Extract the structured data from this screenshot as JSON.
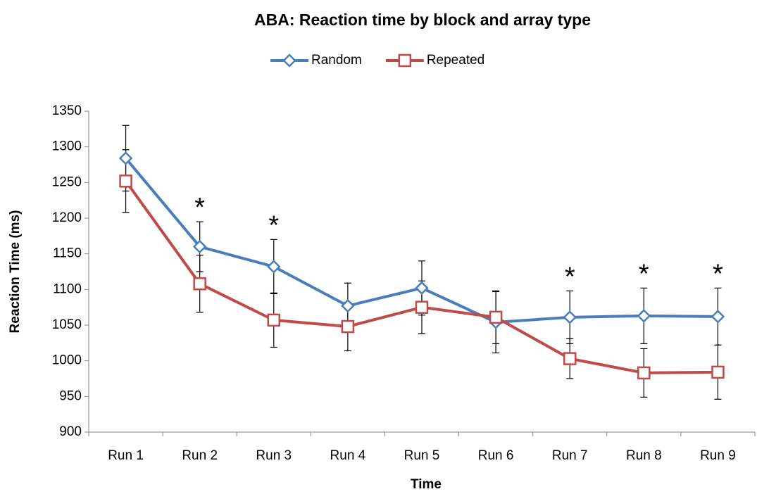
{
  "chart_data": {
    "type": "line",
    "title": "ABA: Reaction time by block and array type",
    "x_label": "Time",
    "y_label": "Reaction Time (ms)",
    "categories": [
      "Run 1",
      "Run 2",
      "Run 3",
      "Run 4",
      "Run 5",
      "Run 6",
      "Run 7",
      "Run 8",
      "Run 9"
    ],
    "series": [
      {
        "name": "Random",
        "color": "#4a7ebb",
        "marker": "diamond",
        "values": [
          1284,
          1160,
          1132,
          1077,
          1102,
          1054,
          1061,
          1063,
          1062
        ],
        "errors": [
          46,
          35,
          38,
          32,
          38,
          43,
          37,
          39,
          40
        ]
      },
      {
        "name": "Repeated",
        "color": "#be4b48",
        "marker": "square",
        "values": [
          1252,
          1108,
          1057,
          1048,
          1075,
          1061,
          1003,
          983,
          984
        ],
        "errors": [
          44,
          40,
          38,
          34,
          37,
          37,
          28,
          34,
          38
        ]
      }
    ],
    "annotations": [
      {
        "text": "*",
        "x": "Run 2"
      },
      {
        "text": "*",
        "x": "Run 3"
      },
      {
        "text": "*",
        "x": "Run 7"
      },
      {
        "text": "*",
        "x": "Run 8"
      },
      {
        "text": "*",
        "x": "Run 9"
      }
    ],
    "ylim": [
      900,
      1350
    ],
    "yticks": [
      900,
      950,
      1000,
      1050,
      1100,
      1150,
      1200,
      1250,
      1300,
      1350
    ],
    "grid": false,
    "legend": "top"
  }
}
